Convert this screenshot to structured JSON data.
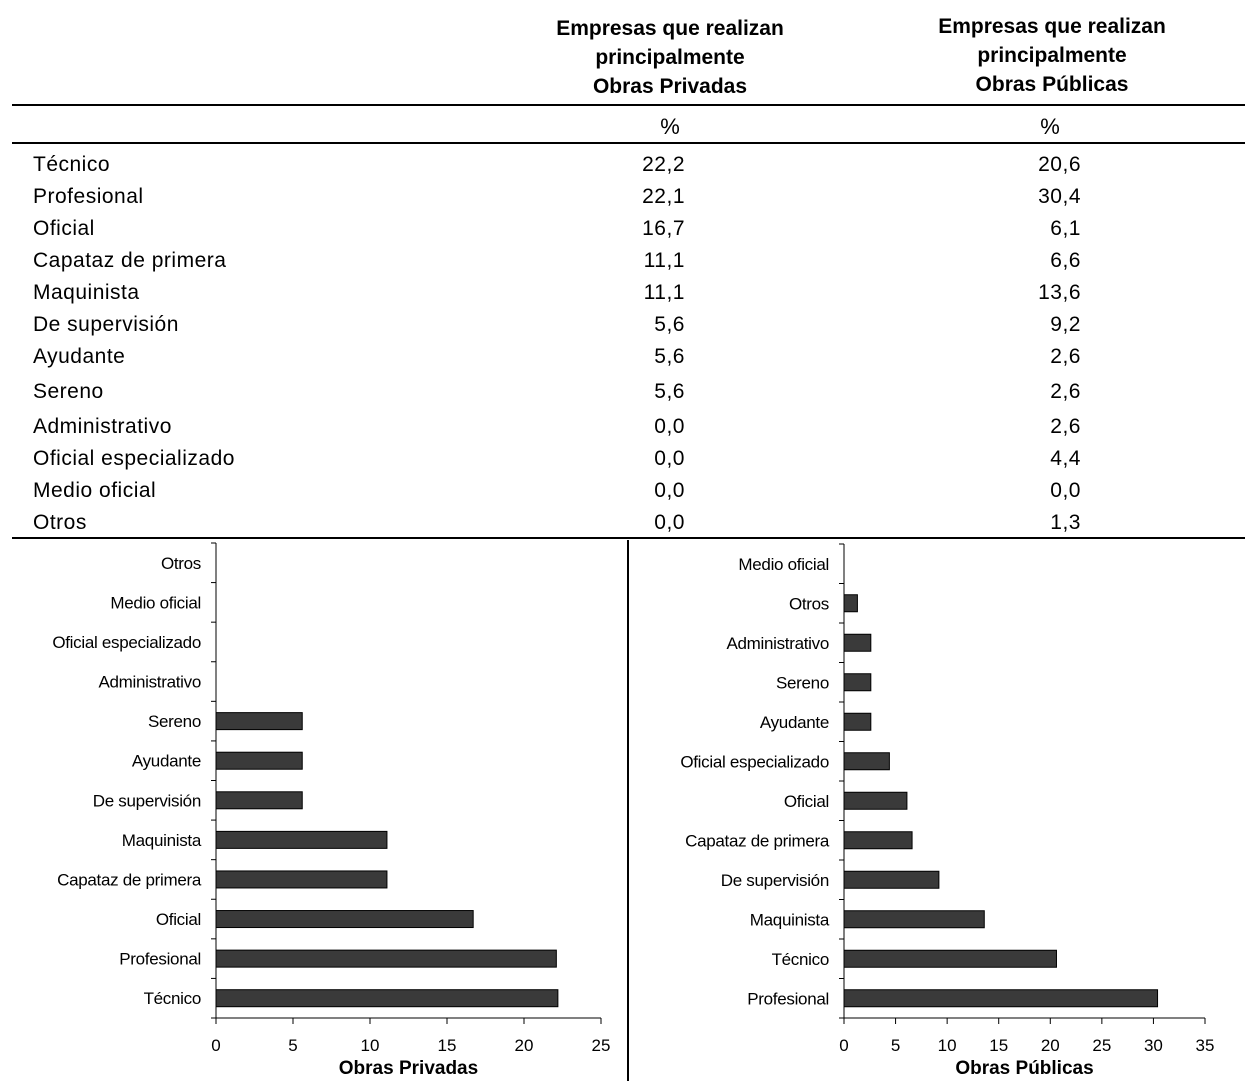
{
  "table": {
    "col1_header": [
      "Empresas que realizan",
      "principalmente",
      "Obras Privadas"
    ],
    "col2_header": [
      "Empresas que realizan",
      "principalmente",
      "Obras Públicas"
    ],
    "unit1": "%",
    "unit2": "%",
    "rows": [
      {
        "label": "Técnico",
        "privadas": "22,2",
        "publicas": "20,6"
      },
      {
        "label": "Profesional",
        "privadas": "22,1",
        "publicas": "30,4"
      },
      {
        "label": "Oficial",
        "privadas": "16,7",
        "publicas": "6,1"
      },
      {
        "label": "Capataz de primera",
        "privadas": "11,1",
        "publicas": "6,6"
      },
      {
        "label": "Maquinista",
        "privadas": "11,1",
        "publicas": "13,6"
      },
      {
        "label": "De supervisión",
        "privadas": "5,6",
        "publicas": "9,2"
      },
      {
        "label": "Ayudante",
        "privadas": "5,6",
        "publicas": "2,6"
      },
      {
        "label": "Sereno",
        "privadas": "5,6",
        "publicas": "2,6"
      },
      {
        "label": "Administrativo",
        "privadas": "0,0",
        "publicas": "2,6"
      },
      {
        "label": "Oficial especializado",
        "privadas": "0,0",
        "publicas": "4,4"
      },
      {
        "label": "Medio oficial",
        "privadas": "0,0",
        "publicas": "0,0"
      },
      {
        "label": "Otros",
        "privadas": "0,0",
        "publicas": "1,3"
      }
    ]
  },
  "colors": {
    "bar": "#3a3a3a",
    "axis": "#000000"
  },
  "chart_data": [
    {
      "type": "bar",
      "orientation": "horizontal",
      "xlabel": "Obras Privadas",
      "ylabel": "",
      "xlim": [
        0,
        25
      ],
      "xticks": [
        0,
        5,
        10,
        15,
        20,
        25
      ],
      "categories": [
        "Otros",
        "Medio oficial",
        "Oficial especializado",
        "Administrativo",
        "Sereno",
        "Ayudante",
        "De supervisión",
        "Maquinista",
        "Capataz de primera",
        "Oficial",
        "Profesional",
        "Técnico"
      ],
      "values": [
        0.0,
        0.0,
        0.0,
        0.0,
        5.6,
        5.6,
        5.6,
        11.1,
        11.1,
        16.7,
        22.1,
        22.2
      ],
      "grid": false
    },
    {
      "type": "bar",
      "orientation": "horizontal",
      "xlabel": "Obras Públicas",
      "ylabel": "",
      "xlim": [
        0,
        35
      ],
      "xticks": [
        0,
        5,
        10,
        15,
        20,
        25,
        30,
        35
      ],
      "categories": [
        "Medio oficial",
        "Otros",
        "Administrativo",
        "Sereno",
        "Ayudante",
        "Oficial especializado",
        "Oficial",
        "Capataz de primera",
        "De supervisión",
        "Maquinista",
        "Técnico",
        "Profesional"
      ],
      "values": [
        0.0,
        1.3,
        2.6,
        2.6,
        2.6,
        4.4,
        6.1,
        6.6,
        9.2,
        13.6,
        20.6,
        30.4
      ],
      "grid": false
    }
  ]
}
